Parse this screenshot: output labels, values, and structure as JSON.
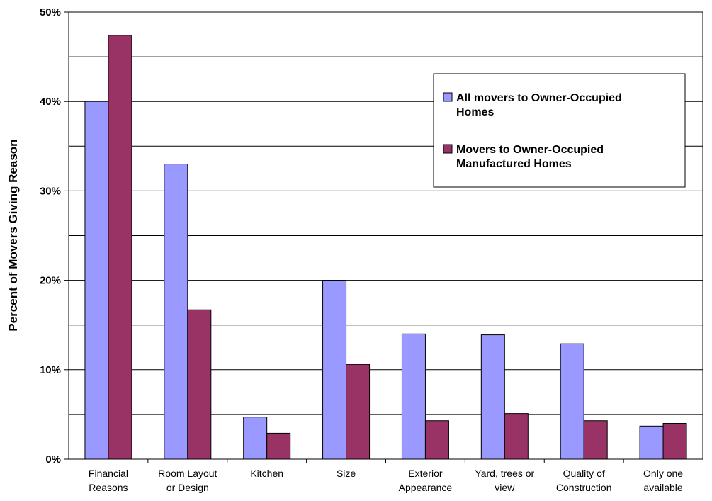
{
  "chart_data": {
    "type": "bar",
    "ylabel": "Percent of Movers Giving Reason",
    "ylim": [
      0,
      50
    ],
    "yticks": [
      "0%",
      "10%",
      "20%",
      "30%",
      "40%",
      "50%"
    ],
    "grid": true,
    "legend_position": "top-right",
    "categories": [
      [
        "Financial",
        "Reasons"
      ],
      [
        "Room Layout",
        "or Design"
      ],
      [
        "Kitchen"
      ],
      [
        "Size"
      ],
      [
        "Exterior",
        "Appearance"
      ],
      [
        "Yard, trees or",
        "view"
      ],
      [
        "Quality of",
        "Construction"
      ],
      [
        "Only one",
        "available"
      ]
    ],
    "series": [
      {
        "name": [
          "All movers to Owner-Occupied",
          "Homes"
        ],
        "color": "#9999ff",
        "values": [
          40.0,
          33.0,
          4.7,
          20.0,
          14.0,
          13.9,
          12.9,
          3.7
        ]
      },
      {
        "name": [
          "Movers to Owner-Occupied",
          "Manufactured Homes"
        ],
        "color": "#993366",
        "values": [
          47.4,
          16.7,
          2.9,
          10.6,
          4.3,
          5.1,
          4.3,
          4.0
        ]
      }
    ]
  }
}
